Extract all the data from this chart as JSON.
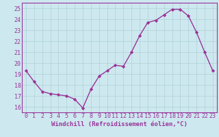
{
  "x": [
    0,
    1,
    2,
    3,
    4,
    5,
    6,
    7,
    8,
    9,
    10,
    11,
    12,
    13,
    14,
    15,
    16,
    17,
    18,
    19,
    20,
    21,
    22,
    23
  ],
  "y": [
    19.3,
    18.3,
    17.4,
    17.2,
    17.1,
    17.0,
    16.7,
    15.9,
    17.6,
    18.8,
    19.3,
    19.8,
    19.7,
    21.0,
    22.5,
    23.7,
    23.9,
    24.4,
    24.9,
    24.9,
    24.3,
    22.8,
    21.0,
    19.3
  ],
  "line_color": "#993399",
  "marker": "D",
  "marker_size": 2.2,
  "line_width": 1.0,
  "xlabel": "Windchill (Refroidissement éolien,°C)",
  "xlabel_fontsize": 6.5,
  "ylim": [
    15.5,
    25.5
  ],
  "yticks": [
    16,
    17,
    18,
    19,
    20,
    21,
    22,
    23,
    24,
    25
  ],
  "xticks": [
    0,
    1,
    2,
    3,
    4,
    5,
    6,
    7,
    8,
    9,
    10,
    11,
    12,
    13,
    14,
    15,
    16,
    17,
    18,
    19,
    20,
    21,
    22,
    23
  ],
  "xlim": [
    -0.5,
    23.5
  ],
  "tick_fontsize": 6.0,
  "bg_color": "#cde8ef",
  "grid_color": "#b0d0d8",
  "axis_color": "#993399",
  "label_color": "#993399"
}
